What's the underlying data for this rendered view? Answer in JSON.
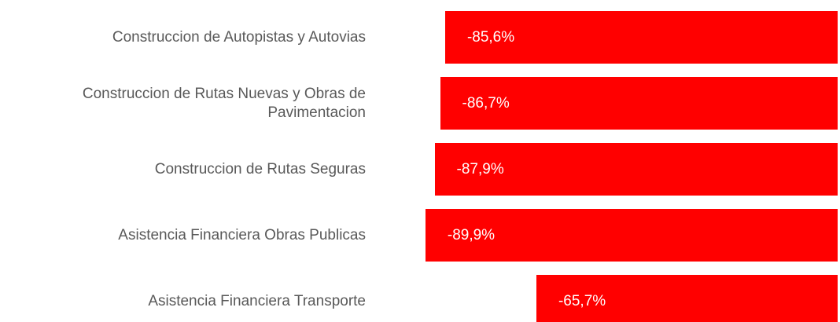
{
  "chart_data": {
    "type": "bar",
    "orientation": "horizontal",
    "color": "#ff0000",
    "categories": [
      "Construccion de Autopistas y Autovias",
      "Construccion de Rutas Nuevas y Obras de Pavimentacion",
      "Construccion de Rutas Seguras",
      "Asistencia Financiera Obras Publicas",
      "Asistencia Financiera Transporte"
    ],
    "values": [
      -85.6,
      -86.7,
      -87.9,
      -89.9,
      -65.7
    ],
    "value_labels": [
      "-85,6%",
      "-86,7%",
      "-87,9%",
      "-89,9%",
      "-65,7%"
    ],
    "xlim": [
      -100,
      0
    ]
  }
}
